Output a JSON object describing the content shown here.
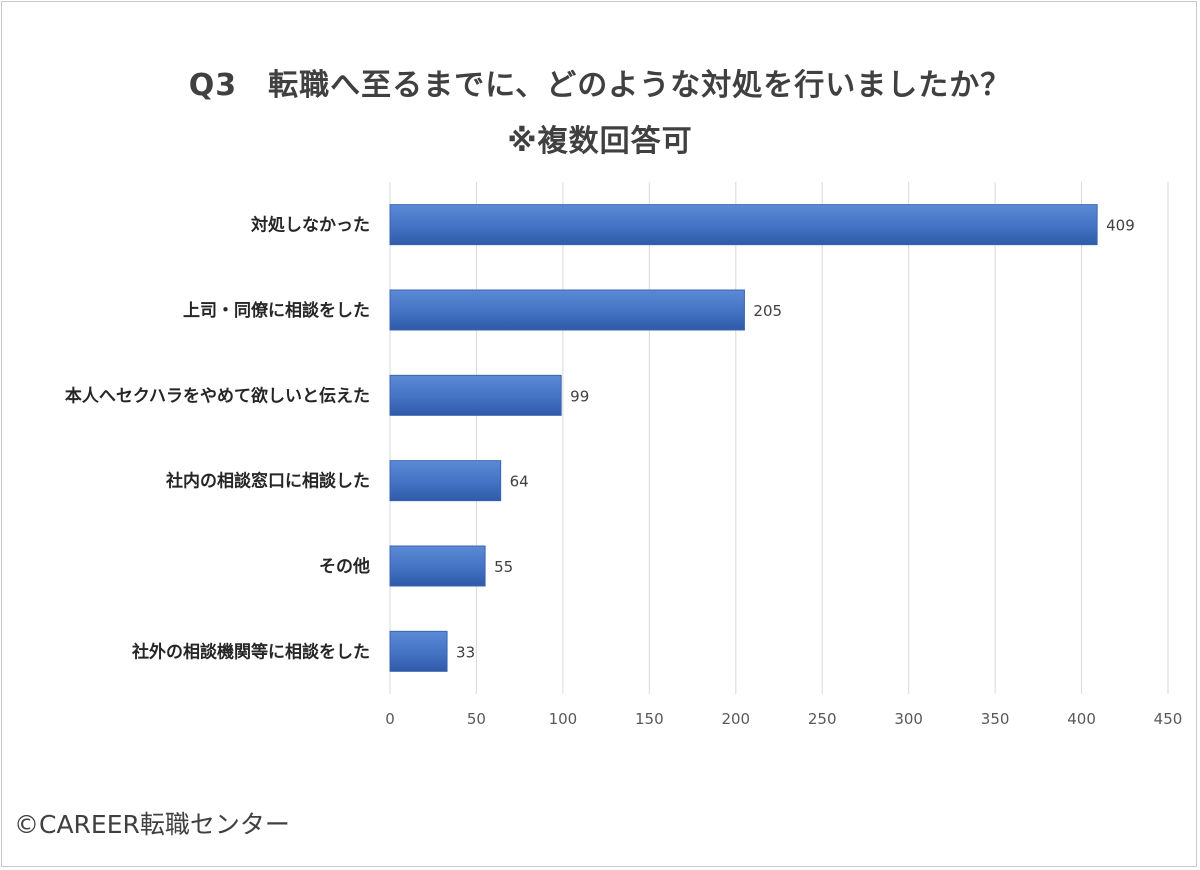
{
  "chart_data": {
    "type": "bar",
    "orientation": "horizontal",
    "title": "Q3　転職へ至るまでに、どのような対処を行いましたか？",
    "subtitle": "※複数回答可",
    "categories": [
      "対処しなかった",
      "上司・同僚に相談をした",
      "本人へセクハラをやめて欲しいと伝えた",
      "社内の相談窓口に相談した",
      "その他",
      "社外の相談機関等に相談をした"
    ],
    "values": [
      409,
      205,
      99,
      64,
      55,
      33
    ],
    "xlim": [
      0,
      450
    ],
    "xticks": [
      "0",
      "50",
      "100",
      "150",
      "200",
      "250",
      "300",
      "350",
      "400",
      "450"
    ],
    "grid": true,
    "bar_color": "#4472c4"
  },
  "footer": {
    "copyright": "©CAREER転職センター"
  }
}
